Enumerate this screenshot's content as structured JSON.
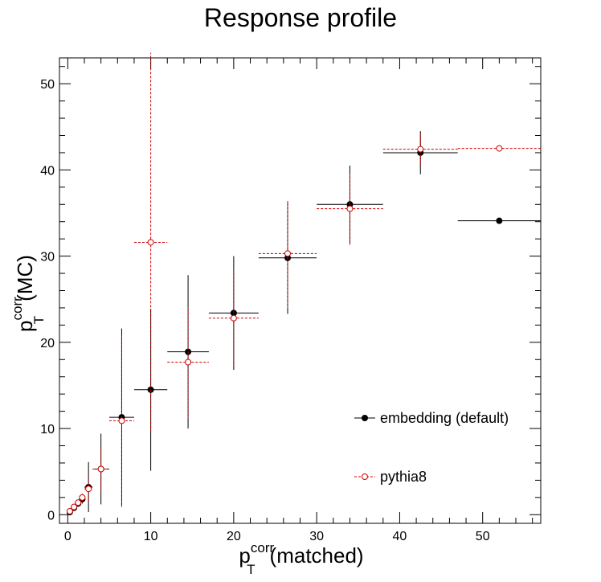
{
  "chart_data": {
    "type": "scatter",
    "title": "Response profile",
    "xlabel": {
      "base": "p",
      "sup": "corr",
      "sub": "T",
      "suffix": "(matched)"
    },
    "ylabel": {
      "base": "p",
      "sup": "corr",
      "sub": "T",
      "suffix": "(MC)"
    },
    "xlim": [
      -1,
      57
    ],
    "ylim": [
      -1,
      53
    ],
    "xticks": [
      0,
      10,
      20,
      30,
      40,
      50
    ],
    "yticks": [
      0,
      10,
      20,
      30,
      40,
      50
    ],
    "grid": false,
    "legend": "bottom-right",
    "series": [
      {
        "name": "embedding (default)",
        "color": "#000000",
        "marker": "filled-circle",
        "line": "solid",
        "points": [
          {
            "x": 0.25,
            "xerr": 0.25,
            "y": 0.3,
            "yerr": 0.2
          },
          {
            "x": 0.75,
            "xerr": 0.25,
            "y": 0.8,
            "yerr": 0.3
          },
          {
            "x": 1.25,
            "xerr": 0.25,
            "y": 1.3,
            "yerr": 0.4
          },
          {
            "x": 1.75,
            "xerr": 0.25,
            "y": 1.8,
            "yerr": 0.5
          },
          {
            "x": 2.5,
            "xerr": 0.5,
            "y": 3.2,
            "yerr": 2.9
          },
          {
            "x": 4.0,
            "xerr": 1.0,
            "y": 5.3,
            "yerr": 4.1
          },
          {
            "x": 6.5,
            "xerr": 1.5,
            "y": 11.3,
            "yerr": 10.3
          },
          {
            "x": 10.0,
            "xerr": 2.0,
            "y": 14.5,
            "yerr": 9.4
          },
          {
            "x": 14.5,
            "xerr": 2.5,
            "y": 18.9,
            "yerr": 8.9
          },
          {
            "x": 20.0,
            "xerr": 3.0,
            "y": 23.4,
            "yerr": 6.6
          },
          {
            "x": 26.5,
            "xerr": 3.5,
            "y": 29.8,
            "yerr": 6.5
          },
          {
            "x": 34.0,
            "xerr": 4.0,
            "y": 36.0,
            "yerr": 4.5
          },
          {
            "x": 42.5,
            "xerr": 4.5,
            "y": 42.0,
            "yerr": 2.5
          },
          {
            "x": 52.0,
            "xerr": 5.0,
            "y": 34.1,
            "yerr": 0.3
          }
        ]
      },
      {
        "name": "pythia8",
        "color": "#cc0000",
        "marker": "open-circle",
        "line": "dashed",
        "points": [
          {
            "x": 0.25,
            "xerr": 0.25,
            "y": 0.4,
            "yerr": 0.2
          },
          {
            "x": 0.75,
            "xerr": 0.25,
            "y": 0.9,
            "yerr": 0.3
          },
          {
            "x": 1.25,
            "xerr": 0.25,
            "y": 1.4,
            "yerr": 0.4
          },
          {
            "x": 1.75,
            "xerr": 0.25,
            "y": 2.0,
            "yerr": 0.5
          },
          {
            "x": 2.5,
            "xerr": 0.5,
            "y": 3.0,
            "yerr": 1.5
          },
          {
            "x": 4.0,
            "xerr": 1.0,
            "y": 5.3,
            "yerr": 2.5
          },
          {
            "x": 6.5,
            "xerr": 1.5,
            "y": 10.9,
            "yerr": 10.0
          },
          {
            "x": 10.0,
            "xerr": 2.0,
            "y": 31.6,
            "yerr": 22.0
          },
          {
            "x": 14.5,
            "xerr": 2.5,
            "y": 17.7,
            "yerr": 6.5
          },
          {
            "x": 20.0,
            "xerr": 3.0,
            "y": 22.8,
            "yerr": 5.5
          },
          {
            "x": 26.5,
            "xerr": 3.5,
            "y": 30.3,
            "yerr": 6.3
          },
          {
            "x": 34.0,
            "xerr": 4.0,
            "y": 35.5,
            "yerr": 4.2
          },
          {
            "x": 42.5,
            "xerr": 4.5,
            "y": 42.4,
            "yerr": 1.8
          },
          {
            "x": 52.0,
            "xerr": 5.0,
            "y": 42.5,
            "yerr": 0.2
          }
        ]
      }
    ]
  }
}
